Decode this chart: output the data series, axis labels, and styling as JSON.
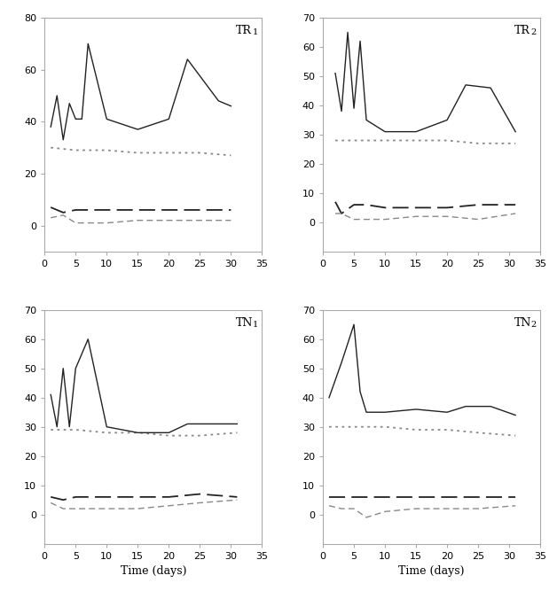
{
  "subplots": [
    {
      "label": "TR",
      "subscript": "1",
      "ylim": [
        -10,
        80
      ],
      "yticks": [
        0,
        20,
        40,
        60,
        80
      ],
      "xlim": [
        0,
        35
      ],
      "xticks": [
        0,
        5,
        10,
        15,
        20,
        25,
        30,
        35
      ],
      "solid_x": [
        1,
        2,
        3,
        4,
        5,
        6,
        7,
        10,
        15,
        20,
        23,
        28,
        30
      ],
      "solid_y": [
        38,
        50,
        33,
        47,
        41,
        41,
        70,
        41,
        37,
        41,
        64,
        48,
        46
      ],
      "dotted_x": [
        1,
        5,
        10,
        15,
        20,
        25,
        30
      ],
      "dotted_y": [
        30,
        29,
        29,
        28,
        28,
        28,
        27
      ],
      "dash_long_x": [
        1,
        3,
        5,
        7,
        10,
        15,
        20,
        25,
        30
      ],
      "dash_long_y": [
        7,
        5,
        6,
        6,
        6,
        6,
        6,
        6,
        6
      ],
      "dash_short_x": [
        1,
        3,
        5,
        7,
        10,
        15,
        20,
        25,
        30
      ],
      "dash_short_y": [
        3,
        4,
        1,
        1,
        1,
        2,
        2,
        2,
        2
      ],
      "show_xlabel": false
    },
    {
      "label": "TR",
      "subscript": "2",
      "ylim": [
        -10,
        70
      ],
      "yticks": [
        0,
        10,
        20,
        30,
        40,
        50,
        60,
        70
      ],
      "xlim": [
        0,
        35
      ],
      "xticks": [
        0,
        5,
        10,
        15,
        20,
        25,
        30,
        35
      ],
      "solid_x": [
        2,
        3,
        4,
        5,
        6,
        7,
        10,
        15,
        20,
        23,
        27,
        31
      ],
      "solid_y": [
        51,
        38,
        65,
        39,
        62,
        35,
        31,
        31,
        35,
        47,
        46,
        31
      ],
      "dotted_x": [
        2,
        5,
        10,
        15,
        20,
        25,
        31
      ],
      "dotted_y": [
        28,
        28,
        28,
        28,
        28,
        27,
        27
      ],
      "dash_long_x": [
        2,
        3,
        5,
        7,
        10,
        15,
        20,
        25,
        31
      ],
      "dash_long_y": [
        7,
        3,
        6,
        6,
        5,
        5,
        5,
        6,
        6
      ],
      "dash_short_x": [
        2,
        3,
        5,
        7,
        10,
        15,
        20,
        25,
        31
      ],
      "dash_short_y": [
        3,
        3,
        1,
        1,
        1,
        2,
        2,
        1,
        3
      ],
      "show_xlabel": false
    },
    {
      "label": "TN",
      "subscript": "1",
      "ylim": [
        -10,
        70
      ],
      "yticks": [
        0,
        10,
        20,
        30,
        40,
        50,
        60,
        70
      ],
      "xlim": [
        0,
        35
      ],
      "xticks": [
        0,
        5,
        10,
        15,
        20,
        25,
        30,
        35
      ],
      "solid_x": [
        1,
        2,
        3,
        4,
        5,
        7,
        10,
        15,
        20,
        23,
        27,
        31
      ],
      "solid_y": [
        41,
        30,
        50,
        30,
        50,
        60,
        30,
        28,
        28,
        31,
        31,
        31
      ],
      "dotted_x": [
        1,
        5,
        10,
        15,
        20,
        25,
        31
      ],
      "dotted_y": [
        29,
        29,
        28,
        28,
        27,
        27,
        28
      ],
      "dash_long_x": [
        1,
        3,
        5,
        7,
        10,
        15,
        20,
        25,
        31
      ],
      "dash_long_y": [
        6,
        5,
        6,
        6,
        6,
        6,
        6,
        7,
        6
      ],
      "dash_short_x": [
        1,
        3,
        5,
        7,
        10,
        15,
        20,
        25,
        31
      ],
      "dash_short_y": [
        4,
        2,
        2,
        2,
        2,
        2,
        3,
        4,
        5
      ],
      "show_xlabel": true
    },
    {
      "label": "TN",
      "subscript": "2",
      "ylim": [
        -10,
        70
      ],
      "yticks": [
        0,
        10,
        20,
        30,
        40,
        50,
        60,
        70
      ],
      "xlim": [
        0,
        35
      ],
      "xticks": [
        0,
        5,
        10,
        15,
        20,
        25,
        30,
        35
      ],
      "solid_x": [
        1,
        3,
        5,
        6,
        7,
        10,
        15,
        20,
        23,
        27,
        31
      ],
      "solid_y": [
        40,
        52,
        65,
        42,
        35,
        35,
        36,
        35,
        37,
        37,
        34
      ],
      "dotted_x": [
        1,
        5,
        10,
        15,
        20,
        25,
        31
      ],
      "dotted_y": [
        30,
        30,
        30,
        29,
        29,
        28,
        27
      ],
      "dash_long_x": [
        1,
        3,
        5,
        7,
        10,
        15,
        20,
        25,
        31
      ],
      "dash_long_y": [
        6,
        6,
        6,
        6,
        6,
        6,
        6,
        6,
        6
      ],
      "dash_short_x": [
        1,
        3,
        5,
        7,
        10,
        15,
        20,
        25,
        31
      ],
      "dash_short_y": [
        3,
        2,
        2,
        -1,
        1,
        2,
        2,
        2,
        3
      ],
      "show_xlabel": true
    }
  ],
  "solid_color": "#222222",
  "dotted_color": "#888888",
  "dash_long_color": "#222222",
  "dash_short_color": "#888888",
  "xlabel": "Time (days)",
  "tick_fontsize": 8,
  "label_fontsize": 9,
  "subscript_fontsize": 7,
  "bg_color": "#ffffff",
  "spine_color": "#aaaaaa"
}
